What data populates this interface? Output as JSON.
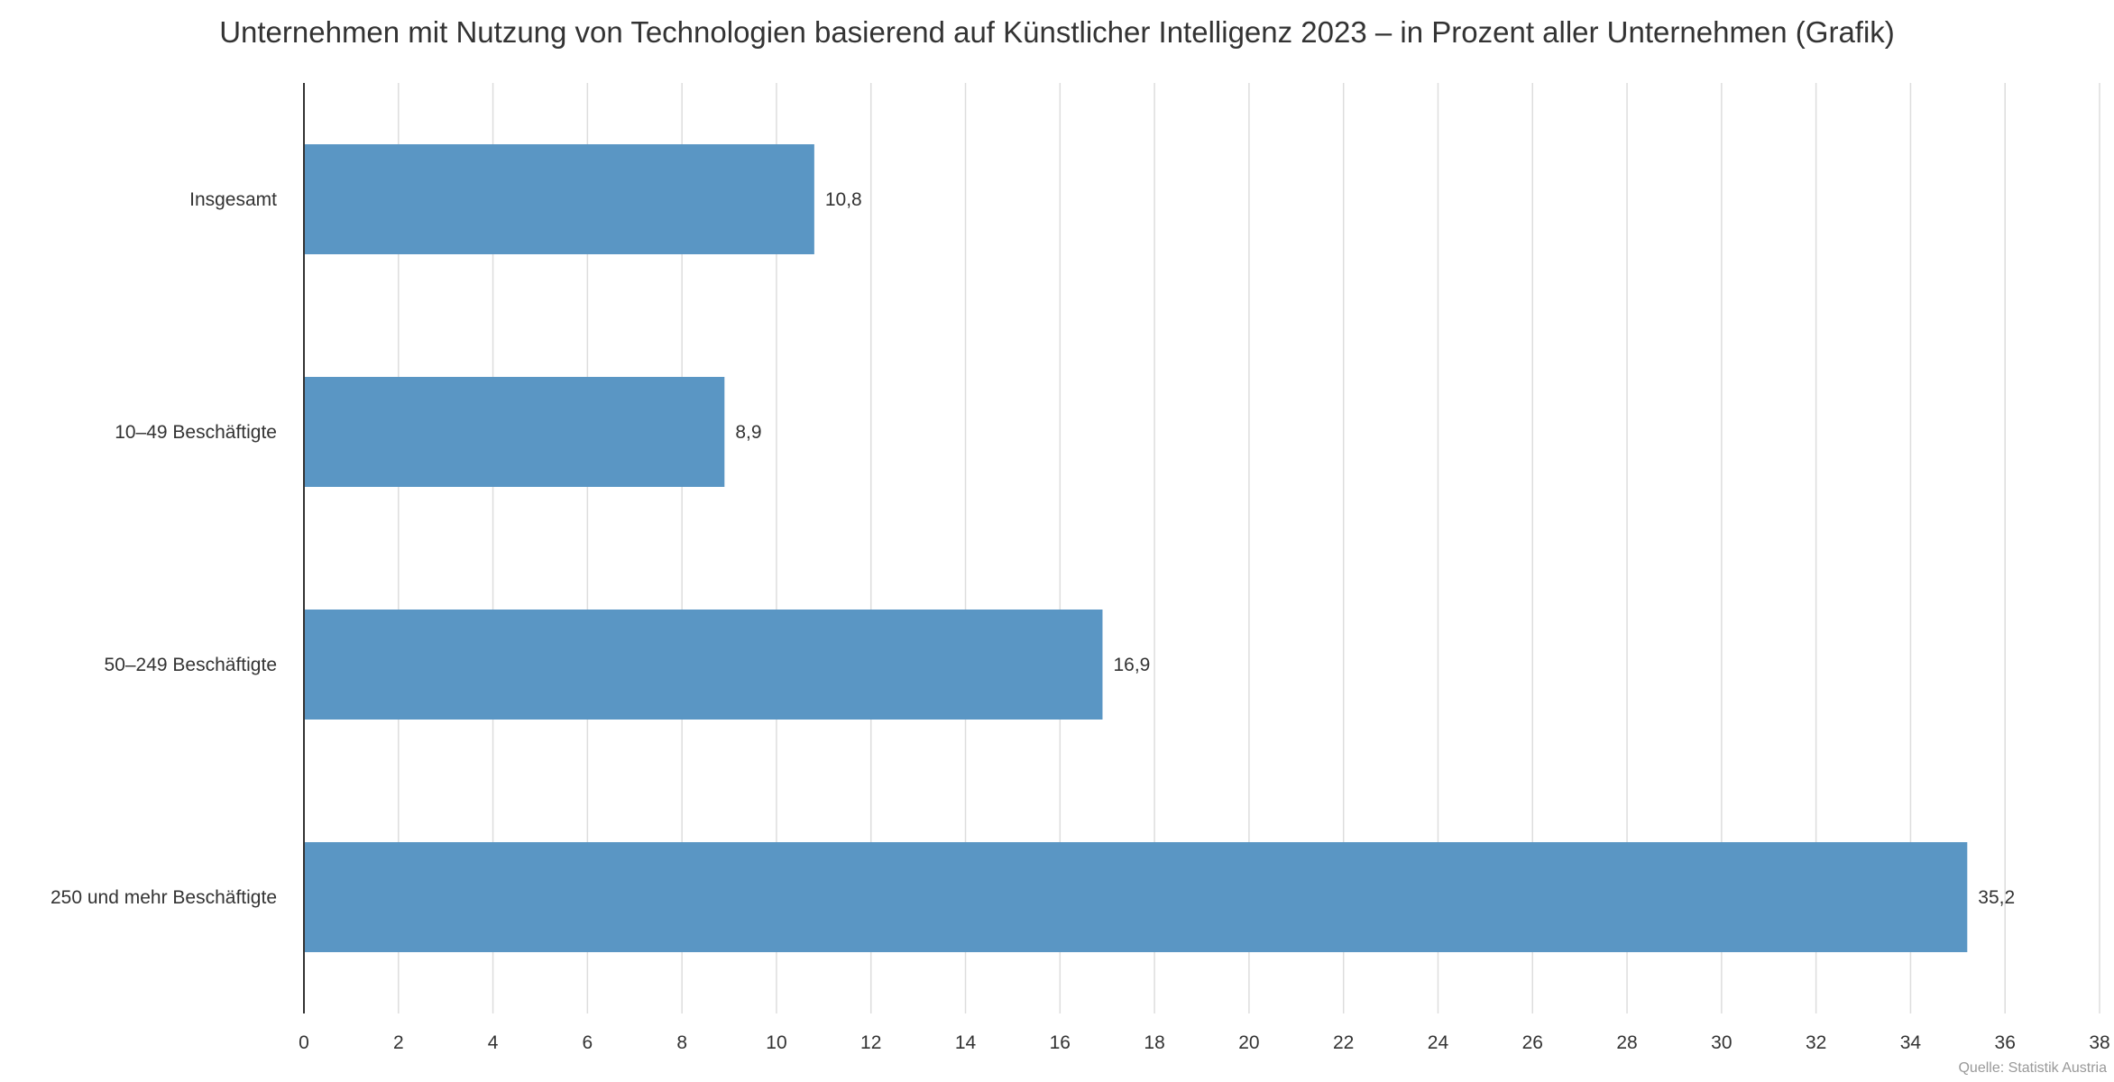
{
  "chart_data": {
    "type": "bar",
    "orientation": "horizontal",
    "title": "Unternehmen mit Nutzung von Technologien basierend auf Künstlicher Intelligenz 2023 – in Prozent aller Unternehmen (Grafik)",
    "categories": [
      "Insgesamt",
      "10–49 Beschäftigte",
      "50–249 Beschäftigte",
      "250 und mehr Beschäftigte"
    ],
    "values": [
      10.8,
      8.9,
      16.9,
      35.2
    ],
    "data_labels": [
      "10,8",
      "8,9",
      "16,9",
      "35,2"
    ],
    "xlim": [
      0,
      38
    ],
    "xticks": [
      0,
      2,
      4,
      6,
      8,
      10,
      12,
      14,
      16,
      18,
      20,
      22,
      24,
      26,
      28,
      30,
      32,
      34,
      36,
      38
    ],
    "grid": "vertical",
    "xlabel": "",
    "ylabel": "",
    "bar_color": "#5a96c4",
    "grid_color": "#dddddd",
    "axis_color": "#333333"
  },
  "source_note": "Quelle: Statistik Austria"
}
